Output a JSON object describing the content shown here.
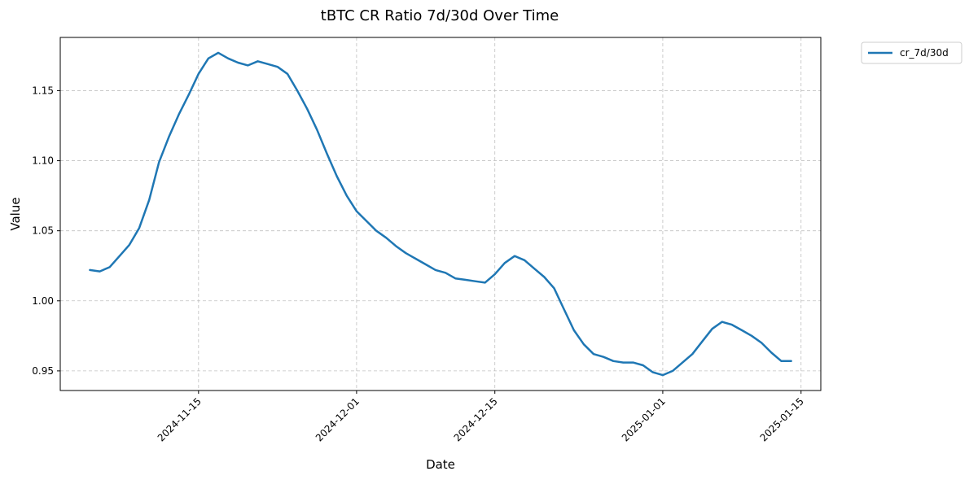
{
  "chart_data": {
    "type": "line",
    "title": "tBTC CR Ratio 7d/30d Over Time",
    "xlabel": "Date",
    "ylabel": "Value",
    "x_ticks": [
      "2024-11-15",
      "2024-12-01",
      "2024-12-15",
      "2025-01-01",
      "2025-01-15"
    ],
    "y_ticks": [
      "0.95",
      "1.00",
      "1.05",
      "1.10",
      "1.15"
    ],
    "xlim": [
      "2024-11-01",
      "2025-01-17"
    ],
    "ylim": [
      0.936,
      1.188
    ],
    "grid": true,
    "legend_position": "outside-top-right",
    "series": [
      {
        "name": "cr_7d/30d",
        "color": "#1f77b4",
        "x": [
          "2024-11-04",
          "2024-11-05",
          "2024-11-06",
          "2024-11-07",
          "2024-11-08",
          "2024-11-09",
          "2024-11-10",
          "2024-11-11",
          "2024-11-12",
          "2024-11-13",
          "2024-11-14",
          "2024-11-15",
          "2024-11-16",
          "2024-11-17",
          "2024-11-18",
          "2024-11-19",
          "2024-11-20",
          "2024-11-21",
          "2024-11-22",
          "2024-11-23",
          "2024-11-24",
          "2024-11-25",
          "2024-11-26",
          "2024-11-27",
          "2024-11-28",
          "2024-11-29",
          "2024-11-30",
          "2024-12-01",
          "2024-12-02",
          "2024-12-03",
          "2024-12-04",
          "2024-12-05",
          "2024-12-06",
          "2024-12-07",
          "2024-12-08",
          "2024-12-09",
          "2024-12-10",
          "2024-12-11",
          "2024-12-12",
          "2024-12-13",
          "2024-12-14",
          "2024-12-15",
          "2024-12-16",
          "2024-12-17",
          "2024-12-18",
          "2024-12-19",
          "2024-12-20",
          "2024-12-21",
          "2024-12-22",
          "2024-12-23",
          "2024-12-24",
          "2024-12-25",
          "2024-12-26",
          "2024-12-27",
          "2024-12-28",
          "2024-12-29",
          "2024-12-30",
          "2024-12-31",
          "2025-01-01",
          "2025-01-02",
          "2025-01-03",
          "2025-01-04",
          "2025-01-05",
          "2025-01-06",
          "2025-01-07",
          "2025-01-08",
          "2025-01-09",
          "2025-01-10",
          "2025-01-11",
          "2025-01-12",
          "2025-01-13",
          "2025-01-14"
        ],
        "values": [
          1.022,
          1.021,
          1.024,
          1.032,
          1.04,
          1.052,
          1.072,
          1.099,
          1.117,
          1.133,
          1.147,
          1.162,
          1.173,
          1.177,
          1.173,
          1.17,
          1.168,
          1.171,
          1.169,
          1.167,
          1.162,
          1.15,
          1.137,
          1.122,
          1.105,
          1.089,
          1.075,
          1.064,
          1.057,
          1.05,
          1.045,
          1.039,
          1.034,
          1.03,
          1.026,
          1.022,
          1.02,
          1.016,
          1.015,
          1.014,
          1.013,
          1.019,
          1.027,
          1.032,
          1.029,
          1.023,
          1.017,
          1.009,
          0.994,
          0.979,
          0.969,
          0.962,
          0.96,
          0.957,
          0.956,
          0.956,
          0.954,
          0.949,
          0.947,
          0.95,
          0.956,
          0.962,
          0.971,
          0.98,
          0.985,
          0.983,
          0.979,
          0.975,
          0.97,
          0.963,
          0.957,
          0.957
        ]
      }
    ]
  }
}
